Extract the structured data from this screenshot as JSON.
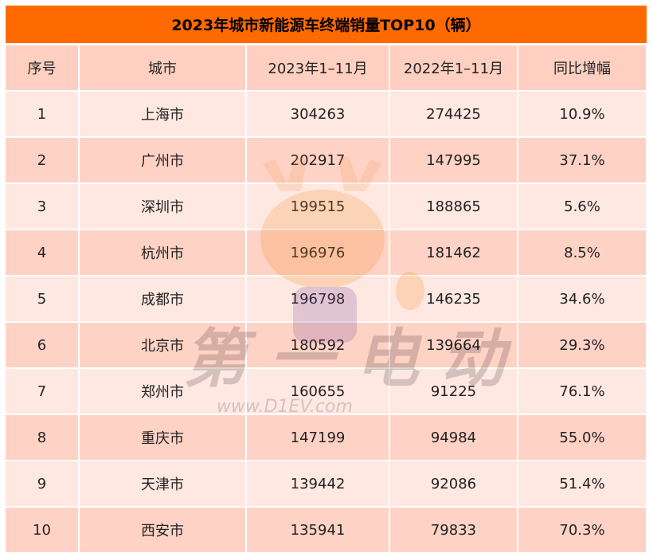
{
  "title": "2023年城市新能源车终端销量TOP10（辆）",
  "colors": {
    "title_bg": "#ff6a00",
    "header_bg": "#ffd0c2",
    "row_light": "#ffe8e1",
    "row_dark": "#ffd2c6"
  },
  "columns": [
    "序号",
    "城市",
    "2023年1–11月",
    "2022年1–11月",
    "同比增幅"
  ],
  "rows": [
    [
      "1",
      "上海市",
      "304263",
      "274425",
      "10.9%"
    ],
    [
      "2",
      "广州市",
      "202917",
      "147995",
      "37.1%"
    ],
    [
      "3",
      "深圳市",
      "199515",
      "188865",
      "5.6%"
    ],
    [
      "4",
      "杭州市",
      "196976",
      "181462",
      "8.5%"
    ],
    [
      "5",
      "成都市",
      "196798",
      "146235",
      "34.6%"
    ],
    [
      "6",
      "北京市",
      "180592",
      "139664",
      "29.3%"
    ],
    [
      "7",
      "郑州市",
      "160655",
      "91225",
      "76.1%"
    ],
    [
      "8",
      "重庆市",
      "147199",
      "94984",
      "55.0%"
    ],
    [
      "9",
      "天津市",
      "139442",
      "92086",
      "51.4%"
    ],
    [
      "10",
      "西安市",
      "135941",
      "79833",
      "70.3%"
    ]
  ],
  "watermark": {
    "logo_text": "第一电动",
    "url": "www.D1EV.com"
  }
}
